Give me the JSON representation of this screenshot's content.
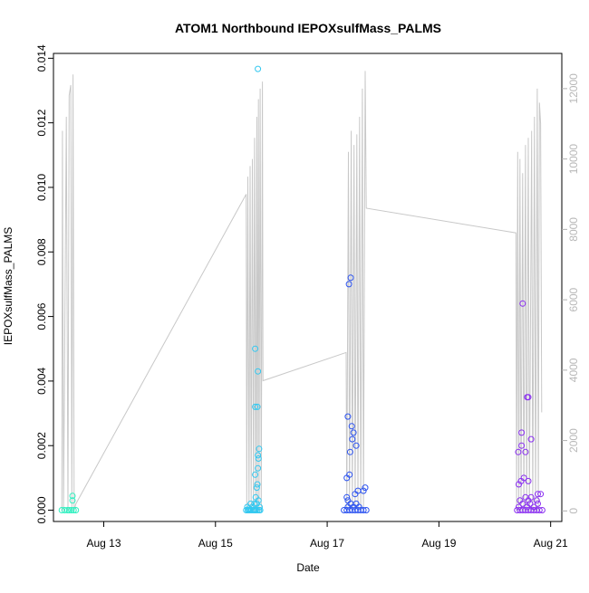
{
  "chart_data": {
    "type": "scatter",
    "title": "ATOM1 Northbound IEPOXsulfMass_PALMS",
    "xlabel": "Date",
    "ylabel": "IEPOXsulfMass_PALMS",
    "xlim": [
      12.1,
      21.2
    ],
    "ylim": [
      -0.00035,
      0.01415
    ],
    "x_ticks": [
      {
        "v": 13,
        "label": "Aug 13"
      },
      {
        "v": 15,
        "label": "Aug 15"
      },
      {
        "v": 17,
        "label": "Aug 17"
      },
      {
        "v": 19,
        "label": "Aug 19"
      },
      {
        "v": 21,
        "label": "Aug 21"
      }
    ],
    "y_ticks": [
      "0.000",
      "0.002",
      "0.004",
      "0.006",
      "0.008",
      "0.010",
      "0.012",
      "0.014"
    ],
    "y2_ticks": [
      "0",
      "2000",
      "4000",
      "6000",
      "8000",
      "10000",
      "12000"
    ],
    "y2lim": [
      -300,
      13000
    ],
    "grid": false,
    "series": [
      {
        "color": "#2ef0c0",
        "points": [
          [
            12.25,
            0
          ],
          [
            12.3,
            0
          ],
          [
            12.35,
            0
          ],
          [
            12.38,
            0
          ],
          [
            12.42,
            0
          ],
          [
            12.46,
            0
          ],
          [
            12.5,
            0
          ],
          [
            12.44,
            0.00044
          ],
          [
            12.44,
            0.0003
          ]
        ]
      },
      {
        "color": "#33c8f0",
        "points": [
          [
            15.55,
            0
          ],
          [
            15.58,
            0
          ],
          [
            15.6,
            0
          ],
          [
            15.62,
            0
          ],
          [
            15.65,
            0
          ],
          [
            15.68,
            0
          ],
          [
            15.7,
            0
          ],
          [
            15.72,
            0
          ],
          [
            15.75,
            0
          ],
          [
            15.78,
            0
          ],
          [
            15.8,
            0
          ],
          [
            15.57,
            0.0001
          ],
          [
            15.6,
            5e-05
          ],
          [
            15.63,
            0.0002
          ],
          [
            15.66,
            0.0001
          ],
          [
            15.7,
            0.0002
          ],
          [
            15.72,
            0.0004
          ],
          [
            15.74,
            0.0002
          ],
          [
            15.77,
            0.0003
          ],
          [
            15.79,
            0.0001
          ],
          [
            15.71,
            0.0011
          ],
          [
            15.74,
            0.0007
          ],
          [
            15.75,
            0.0008
          ],
          [
            15.76,
            0.0013
          ],
          [
            15.77,
            0.0016
          ],
          [
            15.76,
            0.0017
          ],
          [
            15.78,
            0.0019
          ],
          [
            15.71,
            0.0032
          ],
          [
            15.75,
            0.0032
          ],
          [
            15.76,
            0.0043
          ],
          [
            15.71,
            0.005
          ],
          [
            15.76,
            0.01367
          ]
        ]
      },
      {
        "color": "#2b52f0",
        "points": [
          [
            17.3,
            0
          ],
          [
            17.35,
            0
          ],
          [
            17.4,
            0
          ],
          [
            17.45,
            0
          ],
          [
            17.5,
            0
          ],
          [
            17.55,
            0
          ],
          [
            17.6,
            0
          ],
          [
            17.65,
            0
          ],
          [
            17.7,
            0
          ],
          [
            17.37,
            0.0001
          ],
          [
            17.42,
            0.0002
          ],
          [
            17.47,
            0.0001
          ],
          [
            17.52,
            0.0002
          ],
          [
            17.57,
            0.0001
          ],
          [
            17.35,
            0.0004
          ],
          [
            17.37,
            0.0003
          ],
          [
            17.5,
            0.0005
          ],
          [
            17.55,
            0.0006
          ],
          [
            17.65,
            0.0006
          ],
          [
            17.68,
            0.0007
          ],
          [
            17.35,
            0.001
          ],
          [
            17.4,
            0.0011
          ],
          [
            17.41,
            0.0018
          ],
          [
            17.45,
            0.0022
          ],
          [
            17.47,
            0.0024
          ],
          [
            17.44,
            0.0026
          ],
          [
            17.52,
            0.002
          ],
          [
            17.37,
            0.0029
          ],
          [
            17.39,
            0.007
          ],
          [
            17.42,
            0.0072
          ]
        ]
      },
      {
        "color": "#8a2ff0",
        "points": [
          [
            20.4,
            0
          ],
          [
            20.45,
            0
          ],
          [
            20.5,
            0
          ],
          [
            20.55,
            0
          ],
          [
            20.6,
            0
          ],
          [
            20.65,
            0
          ],
          [
            20.7,
            0
          ],
          [
            20.75,
            0
          ],
          [
            20.8,
            0
          ],
          [
            20.85,
            0
          ],
          [
            20.43,
            0.0001
          ],
          [
            20.5,
            0.0002
          ],
          [
            20.58,
            0.0001
          ],
          [
            20.63,
            0.0002
          ],
          [
            20.7,
            0.0001
          ],
          [
            20.77,
            0.0002
          ],
          [
            20.45,
            0.0003
          ],
          [
            20.55,
            0.0004
          ],
          [
            20.6,
            0.0003
          ],
          [
            20.65,
            0.0004
          ],
          [
            20.75,
            0.0003
          ],
          [
            20.82,
            0.0005
          ],
          [
            20.43,
            0.0008
          ],
          [
            20.47,
            0.0009
          ],
          [
            20.52,
            0.001
          ],
          [
            20.6,
            0.0009
          ],
          [
            20.77,
            0.0005
          ],
          [
            20.42,
            0.0018
          ],
          [
            20.48,
            0.002
          ],
          [
            20.55,
            0.0018
          ],
          [
            20.65,
            0.0022
          ],
          [
            20.48,
            0.0024
          ],
          [
            20.58,
            0.0035
          ],
          [
            20.6,
            0.0035
          ],
          [
            20.5,
            0.0064
          ]
        ]
      }
    ],
    "background_line": {
      "color": "#c8c8c8",
      "axis": "right",
      "points": [
        [
          12.25,
          0
        ],
        [
          12.26,
          10800
        ],
        [
          12.28,
          0
        ],
        [
          12.33,
          11200
        ],
        [
          12.36,
          0
        ],
        [
          12.38,
          11800
        ],
        [
          12.41,
          12100
        ],
        [
          12.43,
          0
        ],
        [
          12.45,
          12400
        ],
        [
          12.47,
          0
        ],
        [
          12.5,
          200
        ],
        [
          15.55,
          9000
        ],
        [
          15.56,
          0
        ],
        [
          15.58,
          9500
        ],
        [
          15.6,
          0
        ],
        [
          15.62,
          9800
        ],
        [
          15.64,
          0
        ],
        [
          15.66,
          10000
        ],
        [
          15.68,
          0
        ],
        [
          15.7,
          10600
        ],
        [
          15.72,
          0
        ],
        [
          15.74,
          11200
        ],
        [
          15.75,
          0
        ],
        [
          15.77,
          11700
        ],
        [
          15.78,
          0
        ],
        [
          15.8,
          12000
        ],
        [
          15.82,
          0
        ],
        [
          15.84,
          12200
        ],
        [
          15.85,
          3700
        ],
        [
          17.34,
          4500
        ],
        [
          17.35,
          0
        ],
        [
          17.38,
          10200
        ],
        [
          17.4,
          0
        ],
        [
          17.43,
          10800
        ],
        [
          17.45,
          0
        ],
        [
          17.48,
          10400
        ],
        [
          17.5,
          0
        ],
        [
          17.53,
          10700
        ],
        [
          17.55,
          0
        ],
        [
          17.58,
          11200
        ],
        [
          17.6,
          0
        ],
        [
          17.63,
          12000
        ],
        [
          17.65,
          0
        ],
        [
          17.68,
          12500
        ],
        [
          17.7,
          8600
        ],
        [
          20.38,
          7900
        ],
        [
          20.39,
          0
        ],
        [
          20.41,
          10200
        ],
        [
          20.43,
          0
        ],
        [
          20.45,
          10000
        ],
        [
          20.47,
          0
        ],
        [
          20.5,
          9600
        ],
        [
          20.52,
          0
        ],
        [
          20.55,
          10400
        ],
        [
          20.57,
          0
        ],
        [
          20.6,
          10600
        ],
        [
          20.62,
          0
        ],
        [
          20.66,
          10800
        ],
        [
          20.68,
          0
        ],
        [
          20.71,
          11200
        ],
        [
          20.73,
          0
        ],
        [
          20.76,
          12000
        ],
        [
          20.78,
          0
        ],
        [
          20.8,
          11600
        ],
        [
          20.82,
          11000
        ],
        [
          20.84,
          2800
        ]
      ]
    }
  }
}
